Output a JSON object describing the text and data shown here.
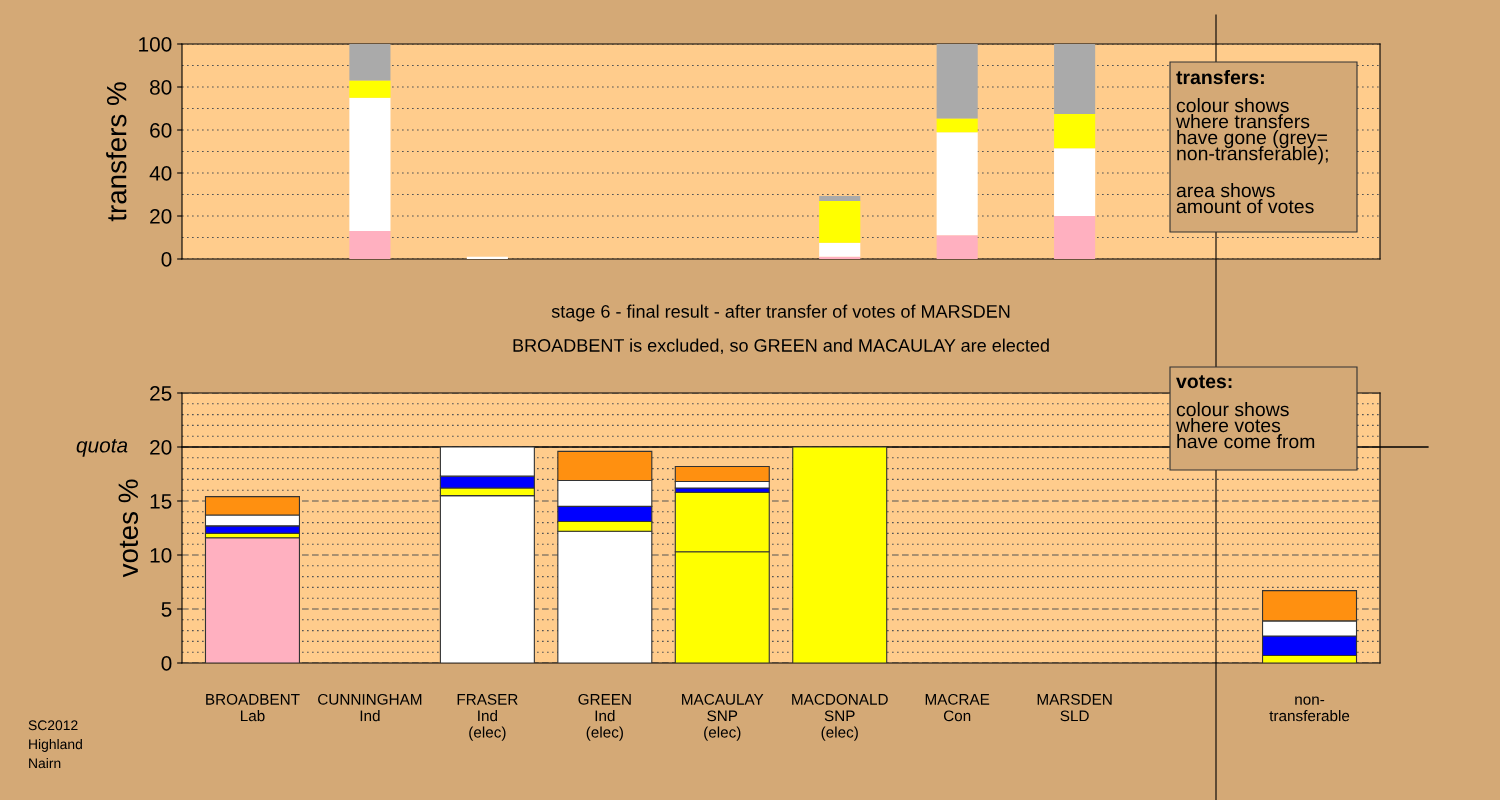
{
  "chart_data": [
    {
      "type": "bar",
      "stacked": true,
      "ylabel": "transfers %",
      "categories": [
        null,
        null,
        null,
        null,
        null,
        null,
        null,
        null,
        null,
        null
      ],
      "series": [
        {
          "color": "#ffb0c0",
          "values": [
            0,
            13,
            0,
            0,
            0,
            1,
            11,
            20,
            null,
            0
          ]
        },
        {
          "color": "#ffffff",
          "values": [
            0,
            62,
            1,
            0,
            0,
            6.6,
            48,
            31.5,
            null,
            0
          ]
        },
        {
          "color": "#ffff00",
          "values": [
            0,
            8,
            0,
            0,
            0,
            19.4,
            6.4,
            15.9,
            null,
            0
          ]
        },
        {
          "color": "#aaaaaa",
          "values": [
            0,
            17,
            0,
            0,
            0,
            2.3,
            34.6,
            32.6,
            null,
            0
          ]
        }
      ],
      "ylim": [
        0,
        100
      ],
      "yticks": [
        0,
        20,
        40,
        60,
        80,
        100
      ],
      "grid": "y",
      "tick_labels": "y",
      "annotations": [
        "transfers:",
        "colour shows\nwhere transfers\nhave gone (grey=\nnon-transferable);",
        "area shows\namount of votes"
      ]
    },
    {
      "type": "bar",
      "stacked": true,
      "ylabel": "votes %",
      "title": "stage 6 - final result - after transfer of votes of MARSDEN",
      "subtitle": "BROADBENT is excluded, so GREEN and MACAULAY are elected",
      "categories": [
        "BROADBENT\nLab",
        "CUNNINGHAM\nInd",
        "FRASER\nInd\n(elec)",
        "GREEN\nInd\n(elec)",
        "MACAULAY\nSNP\n(elec)",
        "MACDONALD\nSNP\n(elec)",
        "MACRAE\nCon",
        "MARSDEN\nSLD",
        null,
        "non-\ntransferable"
      ],
      "series": [
        {
          "colors": [
            "#ffb0c0",
            "#ffffff",
            "#ffffff",
            "#ffffff",
            "#ffff00",
            "#ffff00",
            "#0000ff",
            "#ff9010",
            "#ffffff",
            "#aaaaaa"
          ],
          "values": [
            11.6,
            0,
            15.5,
            12.2,
            10.3,
            20,
            0,
            0,
            null,
            0
          ]
        },
        {
          "color": "#ffff00",
          "values": [
            0.4,
            0,
            0.7,
            0.9,
            5.5,
            0,
            0,
            0,
            null,
            0.7
          ]
        },
        {
          "color": "#0000ff",
          "values": [
            0.7,
            0,
            1.1,
            1.4,
            0.4,
            0,
            0,
            0,
            null,
            1.8
          ]
        },
        {
          "color": "#ffffff",
          "values": [
            1.0,
            0,
            2.7,
            2.4,
            0.6,
            0,
            0,
            0,
            null,
            1.4
          ]
        },
        {
          "color": "#ff9010",
          "values": [
            1.7,
            0,
            0,
            2.7,
            1.4,
            0,
            0,
            0,
            null,
            2.8
          ]
        }
      ],
      "ylim": [
        0,
        25
      ],
      "yticks": [
        0,
        5,
        10,
        15,
        20,
        25
      ],
      "grid": "y",
      "ref_lines": [
        {
          "axis": "y",
          "value": 20,
          "label": "quota",
          "color": "#000000"
        }
      ],
      "annotations": [
        "votes:",
        "colour shows\nwhere votes\nhave come from",
        "SC2012\nHighland\nNairn"
      ]
    }
  ]
}
